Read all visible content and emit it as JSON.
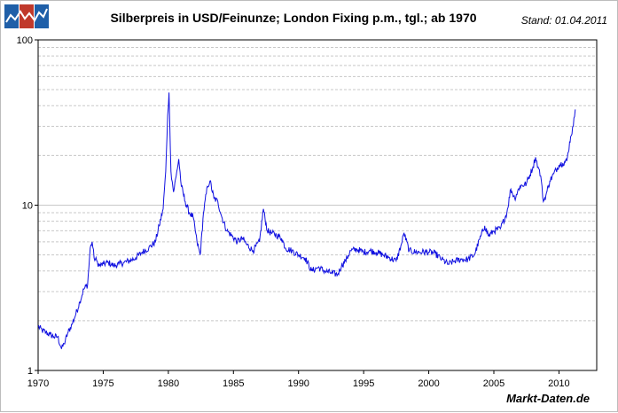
{
  "header": {
    "title": "Silberpreis in USD/Feinunze; London Fixing p.m., tgl.; ab 1970",
    "stand": "Stand: 01.04.2011",
    "brand": "Markt-Daten.de"
  },
  "colors": {
    "line": "#1010e0",
    "grid_major": "#c8c8c8",
    "grid_minor": "#c8c8c8",
    "logo_blue": "#1f5fa8",
    "logo_red": "#c0392b"
  },
  "chart_data": {
    "type": "line",
    "title": "Silberpreis in USD/Feinunze; London Fixing p.m., tgl.; ab 1970",
    "xlabel": "",
    "ylabel": "",
    "yscale": "log",
    "xlim": [
      1970,
      2012.9
    ],
    "ylim": [
      1,
      100
    ],
    "x_ticks": [
      "1970",
      "1975",
      "1980",
      "1985",
      "1990",
      "1995",
      "2000",
      "2005",
      "2010"
    ],
    "y_ticks": [
      "1",
      "10",
      "100"
    ],
    "grid": true,
    "series": [
      {
        "x": [
          1970.0,
          1970.3,
          1970.6,
          1970.9,
          1971.2,
          1971.5,
          1971.8,
          1972.0,
          1972.3,
          1972.6,
          1972.9,
          1973.2,
          1973.5,
          1973.8,
          1974.0,
          1974.15,
          1974.3,
          1974.5,
          1974.7,
          1975.0,
          1975.4,
          1975.8,
          1976.2,
          1976.6,
          1977.0,
          1977.5,
          1978.0,
          1978.5,
          1979.0,
          1979.3,
          1979.6,
          1979.8,
          1979.95,
          1980.05,
          1980.2,
          1980.4,
          1980.6,
          1980.8,
          1981.0,
          1981.3,
          1981.6,
          1981.9,
          1982.2,
          1982.45,
          1982.7,
          1983.0,
          1983.2,
          1983.5,
          1983.8,
          1984.1,
          1984.5,
          1984.9,
          1985.3,
          1985.7,
          1986.0,
          1986.5,
          1987.0,
          1987.3,
          1987.6,
          1987.9,
          1988.3,
          1988.7,
          1989.0,
          1989.5,
          1990.0,
          1990.5,
          1991.0,
          1991.5,
          1992.0,
          1992.5,
          1993.0,
          1993.3,
          1993.6,
          1994.0,
          1994.5,
          1995.0,
          1995.5,
          1996.0,
          1996.5,
          1997.0,
          1997.5,
          1997.9,
          1998.1,
          1998.5,
          1999.0,
          1999.5,
          2000.0,
          2000.5,
          2001.0,
          2001.5,
          2002.0,
          2002.5,
          2003.0,
          2003.5,
          2004.0,
          2004.3,
          2004.6,
          2005.0,
          2005.5,
          2006.0,
          2006.3,
          2006.6,
          2007.0,
          2007.5,
          2008.0,
          2008.2,
          2008.4,
          2008.6,
          2008.8,
          2009.0,
          2009.3,
          2009.6,
          2010.0,
          2010.3,
          2010.6,
          2010.9,
          2011.1,
          2011.25
        ],
        "y": [
          1.85,
          1.75,
          1.7,
          1.65,
          1.6,
          1.6,
          1.35,
          1.45,
          1.7,
          1.9,
          2.2,
          2.6,
          3.1,
          3.3,
          5.5,
          6.0,
          4.8,
          4.6,
          4.3,
          4.4,
          4.5,
          4.3,
          4.4,
          4.5,
          4.6,
          4.8,
          5.2,
          5.5,
          6.0,
          7.5,
          9.5,
          16.0,
          35.0,
          48.0,
          16.0,
          12.0,
          15.0,
          19.0,
          13.0,
          10.5,
          9.0,
          8.5,
          6.0,
          5.0,
          9.0,
          13.0,
          14.0,
          11.0,
          10.5,
          8.5,
          7.0,
          6.5,
          6.0,
          6.3,
          5.8,
          5.3,
          6.0,
          9.5,
          7.0,
          6.8,
          6.6,
          6.3,
          5.5,
          5.3,
          5.0,
          4.8,
          4.0,
          4.2,
          4.0,
          3.9,
          3.8,
          4.3,
          4.6,
          5.3,
          5.4,
          5.2,
          5.3,
          5.2,
          5.0,
          4.8,
          4.6,
          5.8,
          6.8,
          5.3,
          5.2,
          5.2,
          5.2,
          5.1,
          4.7,
          4.4,
          4.6,
          4.7,
          4.7,
          5.0,
          6.5,
          7.5,
          6.5,
          7.0,
          7.2,
          9.0,
          12.5,
          11.0,
          13.0,
          13.5,
          17.0,
          19.5,
          17.0,
          15.0,
          10.5,
          11.5,
          14.0,
          15.5,
          17.5,
          18.0,
          18.5,
          26.0,
          30.0,
          38.0
        ]
      }
    ]
  }
}
